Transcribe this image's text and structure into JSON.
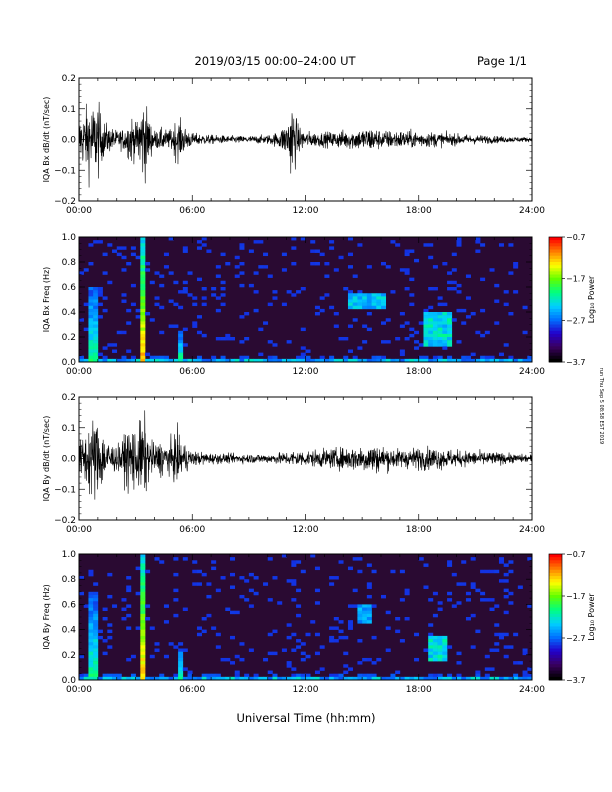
{
  "header": {
    "title": "2019/03/15   00:00–24:00 UT",
    "page": "Page 1/1"
  },
  "side_note": "run Thu Sep 5 08:58 EST 2019",
  "colors": {
    "trace": "#000000",
    "spectrogram_background": "#2a0a32",
    "colorbar": [
      "#000000",
      "#3b0060",
      "#2200cc",
      "#0070ff",
      "#00d0ff",
      "#00ff80",
      "#60ff00",
      "#ffff00",
      "#ff8000",
      "#ff0000"
    ]
  },
  "chart_data": [
    {
      "type": "line",
      "ylabel": "IQA Bx dB/dt (nT/sec)",
      "ylim": [
        -0.2,
        0.2
      ],
      "yticks": [
        "0.2",
        "0.1",
        "0.0",
        "−0.1",
        "−0.2"
      ],
      "xlim": [
        "00:00",
        "24:00"
      ],
      "xticks": [
        "00:00",
        "06:00",
        "12:00",
        "18:00",
        "24:00"
      ],
      "envelope": {
        "hours": [
          0,
          0.3,
          0.6,
          0.8,
          1.0,
          1.2,
          1.6,
          2.0,
          2.4,
          2.8,
          3.0,
          3.3,
          3.5,
          3.7,
          4.0,
          4.4,
          4.8,
          5.2,
          5.6,
          6.0,
          7.0,
          8.0,
          9.0,
          10.0,
          10.5,
          11.0,
          11.3,
          11.6,
          12.0,
          12.5,
          13.0,
          14.0,
          15.0,
          15.5,
          16.0,
          17.0,
          18.0,
          19.0,
          20.0,
          21.0,
          22.0,
          23.0,
          24.0
        ],
        "amplitude": [
          0.12,
          0.16,
          0.22,
          0.18,
          0.22,
          0.12,
          0.07,
          0.05,
          0.06,
          0.14,
          0.08,
          0.22,
          0.22,
          0.12,
          0.05,
          0.06,
          0.05,
          0.12,
          0.07,
          0.035,
          0.025,
          0.02,
          0.02,
          0.025,
          0.04,
          0.09,
          0.22,
          0.08,
          0.045,
          0.04,
          0.04,
          0.05,
          0.06,
          0.07,
          0.05,
          0.05,
          0.045,
          0.04,
          0.03,
          0.025,
          0.02,
          0.015,
          0.012
        ]
      }
    },
    {
      "type": "heatmap",
      "ylabel": "IQA Bx Freq (Hz)",
      "ylim": [
        0,
        1.0
      ],
      "yticks": [
        "1.0",
        "0.8",
        "0.6",
        "0.4",
        "0.2",
        "0.0"
      ],
      "xlim": [
        "00:00",
        "24:00"
      ],
      "xticks": [
        "00:00",
        "06:00",
        "12:00",
        "18:00",
        "24:00"
      ],
      "colorbar": {
        "label": "Log₁₀ Power",
        "range": [
          -3.7,
          -0.7
        ],
        "ticks": [
          "−0.7",
          "−1.7",
          "−2.7",
          "−3.7"
        ]
      },
      "features": [
        {
          "kind": "vertical_band",
          "hours": [
            3.2,
            3.6
          ],
          "max_freq": 1.0,
          "level": 0.8
        },
        {
          "kind": "vertical_band",
          "hours": [
            0.6,
            1.0
          ],
          "max_freq": 0.6,
          "level": 0.5
        },
        {
          "kind": "vertical_band",
          "hours": [
            5.2,
            5.4
          ],
          "max_freq": 0.25,
          "level": 0.5
        },
        {
          "kind": "patch",
          "hours": [
            14.3,
            16.2
          ],
          "freq": [
            0.42,
            0.56
          ],
          "level": 0.5
        },
        {
          "kind": "patch",
          "hours": [
            18.3,
            19.8
          ],
          "freq": [
            0.12,
            0.4
          ],
          "level": 0.55
        },
        {
          "kind": "low_freq_band",
          "hours": [
            0,
            24
          ],
          "freq": [
            0,
            0.08
          ],
          "level": 0.6
        }
      ]
    },
    {
      "type": "line",
      "ylabel": "IQA By dB/dt (nT/sec)",
      "ylim": [
        -0.2,
        0.2
      ],
      "yticks": [
        "0.2",
        "0.1",
        "0.0",
        "−0.1",
        "−0.2"
      ],
      "xlim": [
        "00:00",
        "24:00"
      ],
      "xticks": [
        "00:00",
        "06:00",
        "12:00",
        "18:00",
        "24:00"
      ],
      "envelope": {
        "hours": [
          0,
          0.3,
          0.6,
          0.8,
          1.0,
          1.3,
          1.6,
          2.0,
          2.4,
          2.8,
          3.0,
          3.3,
          3.5,
          3.7,
          4.0,
          4.4,
          4.8,
          5.2,
          5.6,
          6.0,
          7.0,
          8.0,
          9.0,
          10.0,
          11.0,
          11.5,
          12.0,
          13.0,
          14.0,
          15.0,
          15.5,
          16.0,
          17.0,
          18.0,
          19.0,
          20.0,
          21.0,
          22.0,
          23.0,
          24.0
        ],
        "amplitude": [
          0.08,
          0.14,
          0.22,
          0.22,
          0.22,
          0.14,
          0.1,
          0.06,
          0.12,
          0.22,
          0.14,
          0.22,
          0.22,
          0.12,
          0.08,
          0.1,
          0.09,
          0.14,
          0.08,
          0.04,
          0.03,
          0.025,
          0.025,
          0.025,
          0.035,
          0.045,
          0.04,
          0.05,
          0.06,
          0.07,
          0.085,
          0.07,
          0.05,
          0.06,
          0.06,
          0.045,
          0.04,
          0.035,
          0.025,
          0.02
        ]
      }
    },
    {
      "type": "heatmap",
      "ylabel": "IQA By Freq (Hz)",
      "ylim": [
        0,
        1.0
      ],
      "yticks": [
        "1.0",
        "0.8",
        "0.6",
        "0.4",
        "0.2",
        "0.0"
      ],
      "xlim": [
        "00:00",
        "24:00"
      ],
      "xticks": [
        "00:00",
        "06:00",
        "12:00",
        "18:00",
        "24:00"
      ],
      "colorbar": {
        "label": "Log₁₀ Power",
        "range": [
          -3.7,
          -0.7
        ],
        "ticks": [
          "−0.7",
          "−1.7",
          "−2.7",
          "−3.7"
        ]
      },
      "features": [
        {
          "kind": "vertical_band",
          "hours": [
            3.2,
            3.6
          ],
          "max_freq": 1.0,
          "level": 0.8
        },
        {
          "kind": "vertical_band",
          "hours": [
            0.6,
            1.0
          ],
          "max_freq": 0.7,
          "level": 0.5
        },
        {
          "kind": "vertical_band",
          "hours": [
            5.2,
            5.4
          ],
          "max_freq": 0.25,
          "level": 0.5
        },
        {
          "kind": "patch",
          "hours": [
            14.8,
            15.4
          ],
          "freq": [
            0.45,
            0.6
          ],
          "level": 0.45
        },
        {
          "kind": "patch",
          "hours": [
            18.5,
            19.5
          ],
          "freq": [
            0.15,
            0.35
          ],
          "level": 0.55
        },
        {
          "kind": "low_freq_band",
          "hours": [
            0,
            24
          ],
          "freq": [
            0,
            0.08
          ],
          "level": 0.6
        }
      ]
    }
  ],
  "xlabel": "Universal Time (hh:mm)"
}
